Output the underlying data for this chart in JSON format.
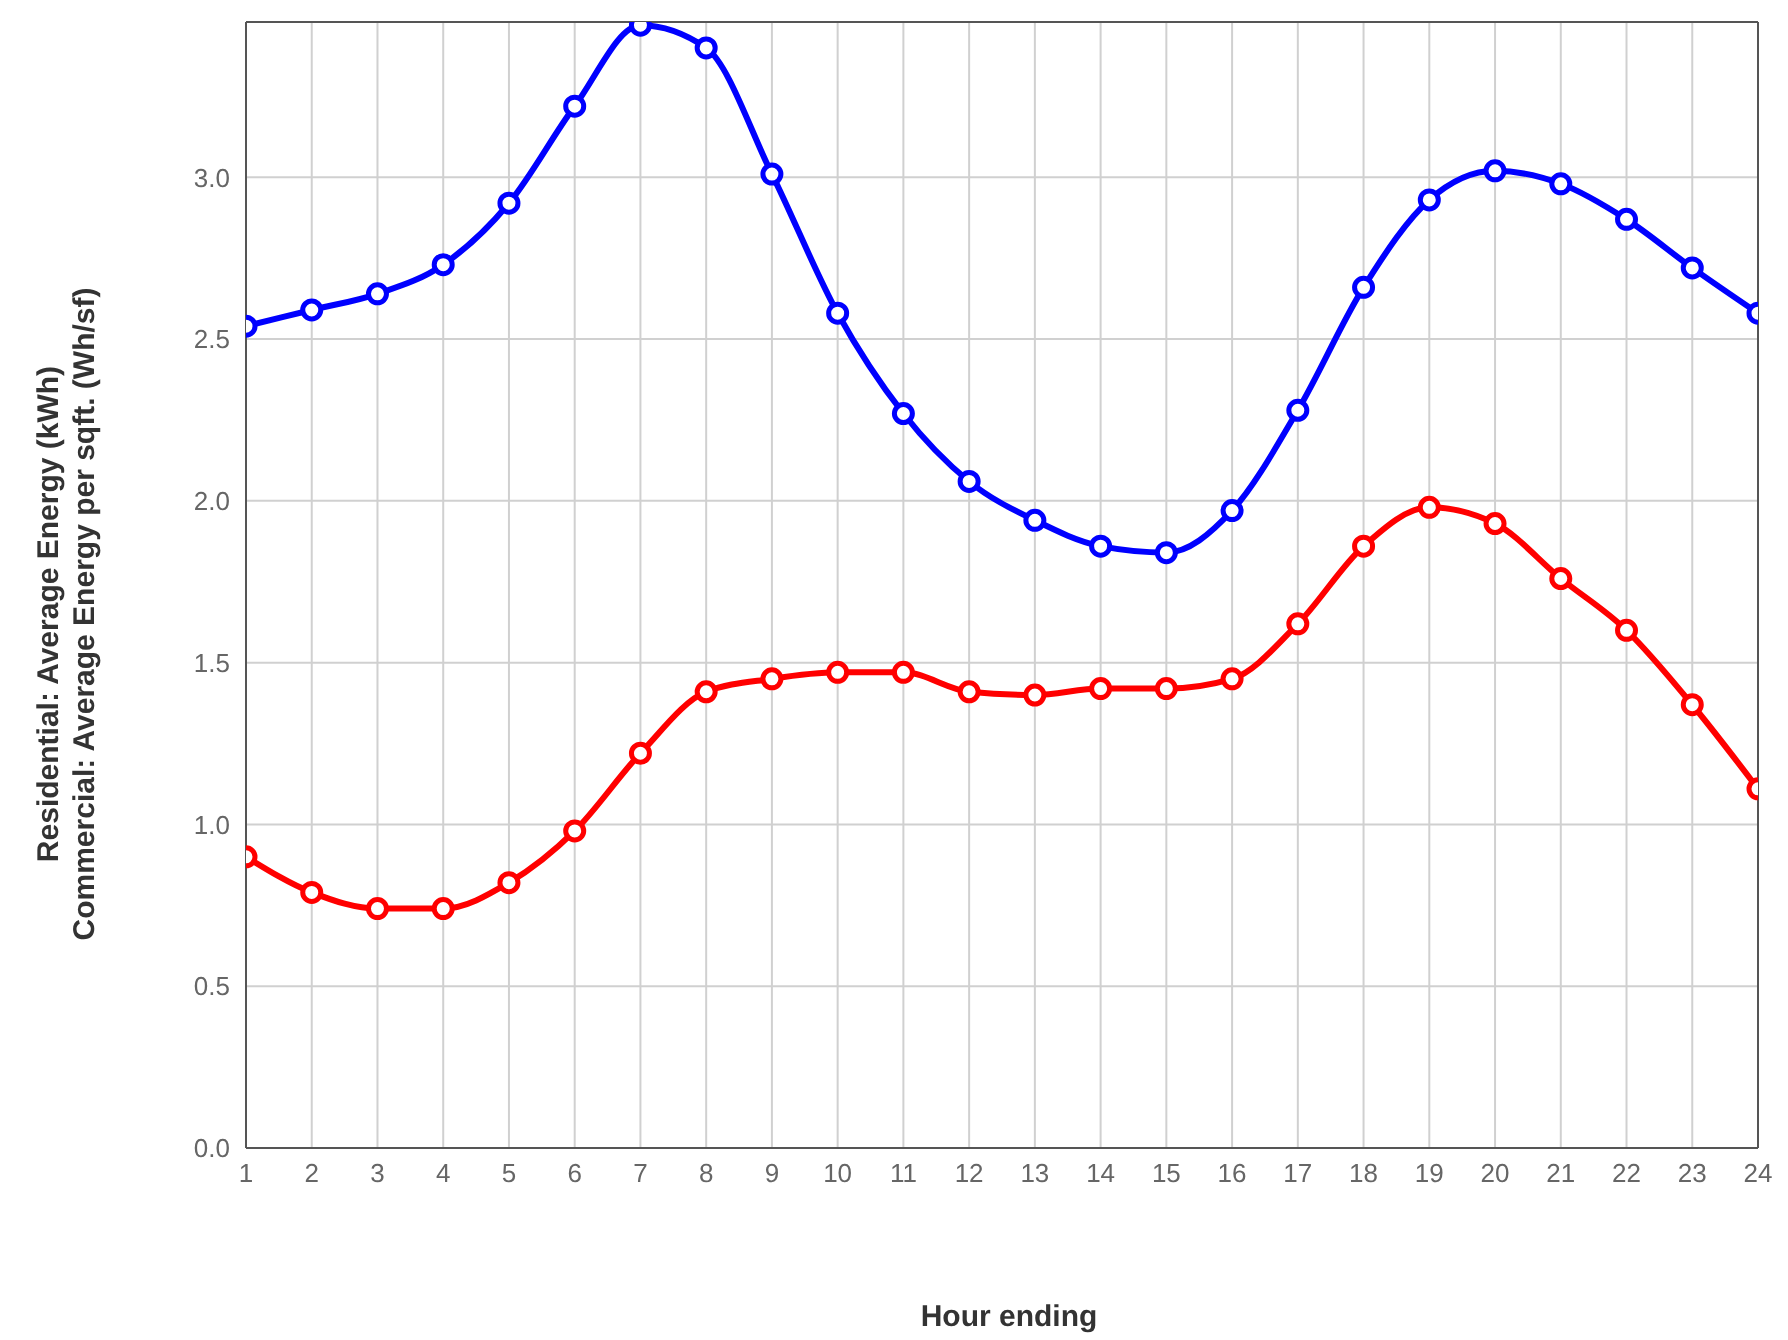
{
  "chart_data": {
    "type": "line",
    "xlabel": "Hour ending",
    "ylabel": "Residential: Average Energy (kWh)\nCommercial: Average Energy per sqft. (Wh/sf)",
    "x": [
      1,
      2,
      3,
      4,
      5,
      6,
      7,
      8,
      9,
      10,
      11,
      12,
      13,
      14,
      15,
      16,
      17,
      18,
      19,
      20,
      21,
      22,
      23,
      24
    ],
    "series": [
      {
        "color": "#0000ff",
        "values": [
          2.54,
          2.59,
          2.64,
          2.73,
          2.92,
          3.22,
          3.47,
          3.4,
          3.01,
          2.58,
          2.27,
          2.06,
          1.94,
          1.86,
          1.84,
          1.97,
          2.28,
          2.66,
          2.93,
          3.02,
          2.98,
          2.87,
          2.72,
          2.58
        ]
      },
      {
        "color": "#ff0000",
        "values": [
          0.9,
          0.79,
          0.74,
          0.74,
          0.82,
          0.98,
          1.22,
          1.41,
          1.45,
          1.47,
          1.47,
          1.41,
          1.4,
          1.42,
          1.42,
          1.45,
          1.62,
          1.86,
          1.98,
          1.93,
          1.76,
          1.6,
          1.37,
          1.11
        ]
      }
    ],
    "xlim": [
      1,
      24
    ],
    "xticks": [
      1,
      2,
      3,
      4,
      5,
      6,
      7,
      8,
      9,
      10,
      11,
      12,
      13,
      14,
      15,
      16,
      17,
      18,
      19,
      20,
      21,
      22,
      23,
      24
    ],
    "ylim": [
      0,
      3.48
    ],
    "yticks": [
      {
        "value": 0,
        "label": "0.0"
      },
      {
        "value": 0.5,
        "label": "0.5"
      },
      {
        "value": 1,
        "label": "1.0"
      },
      {
        "value": 1.5,
        "label": "1.5"
      },
      {
        "value": 2,
        "label": "2.0"
      },
      {
        "value": 2.5,
        "label": "2.5"
      },
      {
        "value": 3,
        "label": "3.0"
      }
    ],
    "grid": true,
    "legend": false,
    "marker": "circle",
    "line_style": "solid"
  }
}
